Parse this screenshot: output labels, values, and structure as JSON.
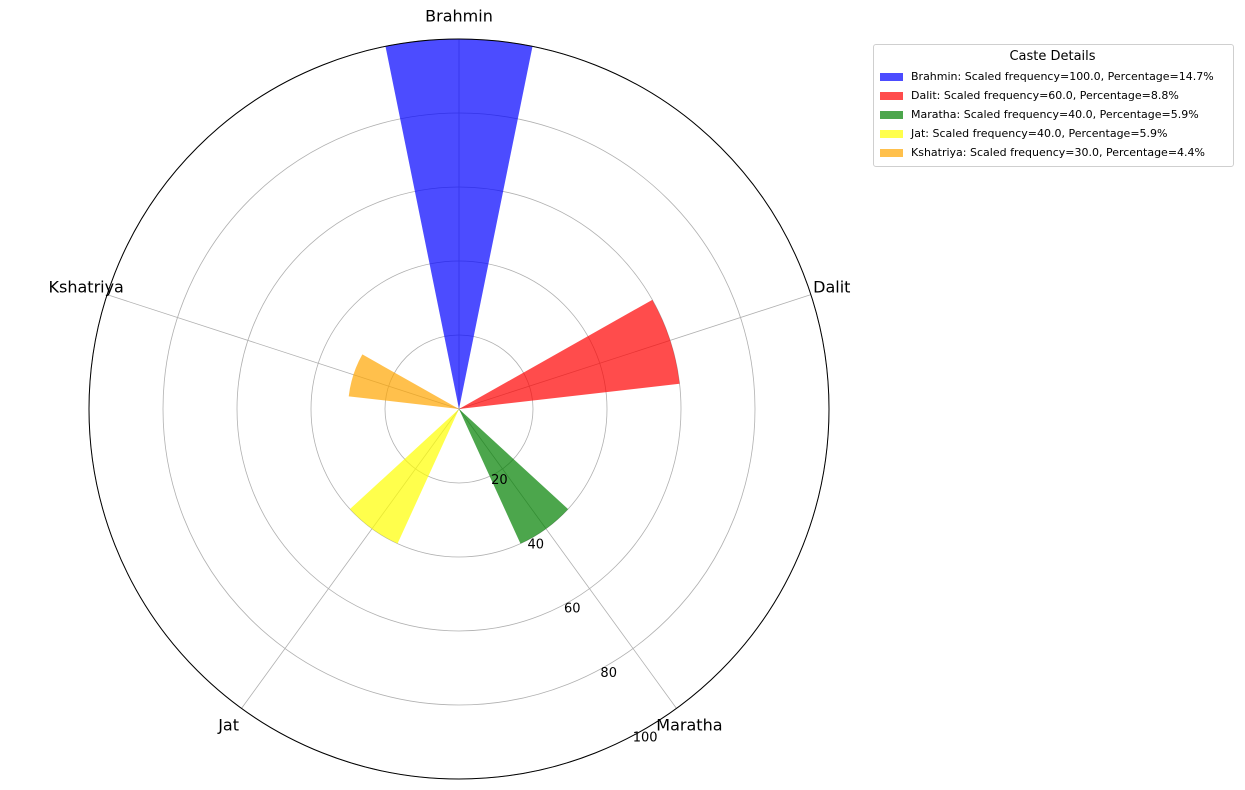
{
  "chart_data": {
    "type": "polar-bar",
    "title": "",
    "categories": [
      "Brahmin",
      "Dalit",
      "Maratha",
      "Jat",
      "Kshatriya"
    ],
    "values": [
      100.0,
      60.0,
      40.0,
      40.0,
      30.0
    ],
    "percentages": [
      14.7,
      8.8,
      5.9,
      5.9,
      4.4
    ],
    "colors": [
      "#0000ff",
      "#ff0000",
      "#008000",
      "#ffff00",
      "#ffa500"
    ],
    "radial_ticks": [
      "20",
      "40",
      "60",
      "80",
      "100"
    ],
    "radial_range": [
      0,
      100
    ],
    "grid": true,
    "legend": {
      "title": "Caste Details",
      "placement": "top-right-outside",
      "entries": [
        "Brahmin: Scaled frequency=100.0, Percentage=14.7%",
        "Dalit: Scaled frequency=60.0, Percentage=8.8%",
        "Maratha: Scaled frequency=40.0, Percentage=5.9%",
        "Jat: Scaled frequency=40.0, Percentage=5.9%",
        "Kshatriya: Scaled frequency=30.0, Percentage=4.4%"
      ]
    }
  }
}
